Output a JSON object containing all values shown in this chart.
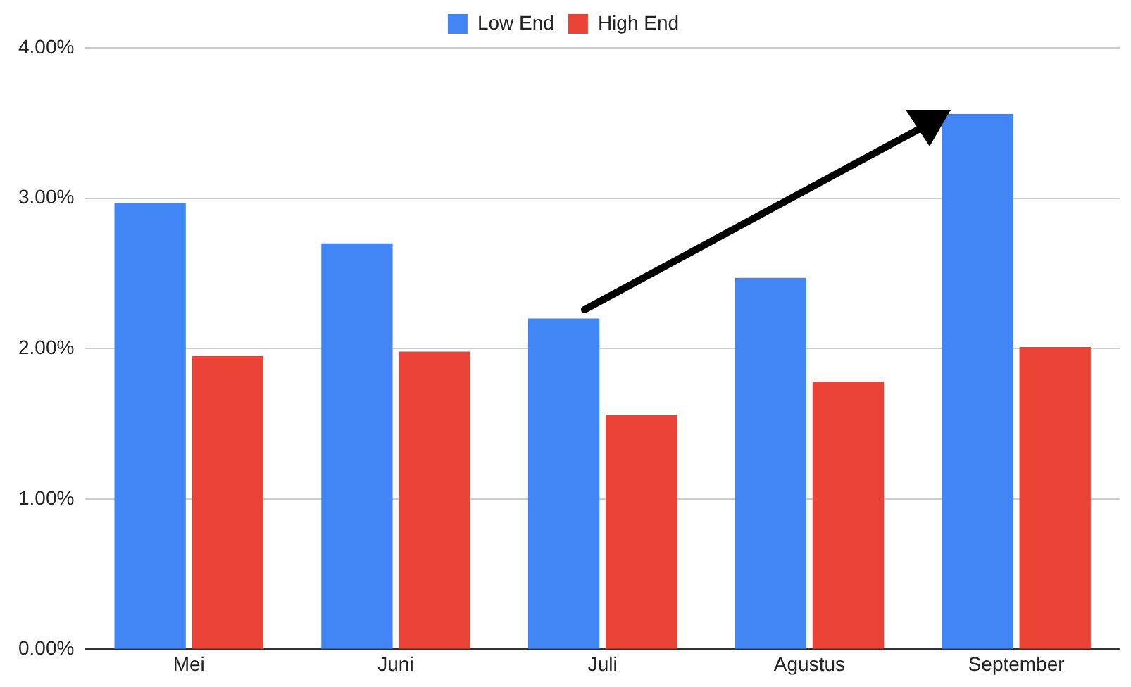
{
  "chart_data": {
    "type": "bar",
    "categories": [
      "Mei",
      "Juni",
      "Juli",
      "Agustus",
      "September"
    ],
    "series": [
      {
        "name": "Low End",
        "color": "#4285f4",
        "values": [
          2.97,
          2.7,
          2.2,
          2.47,
          3.56
        ]
      },
      {
        "name": "High End",
        "color": "#ea4335",
        "values": [
          1.95,
          1.98,
          1.56,
          1.78,
          2.01
        ]
      }
    ],
    "ylim": [
      0,
      4
    ],
    "yticks": [
      {
        "value": 0,
        "label": "0.00%"
      },
      {
        "value": 1,
        "label": "1.00%"
      },
      {
        "value": 2,
        "label": "2.00%"
      },
      {
        "value": 3,
        "label": "3.00%"
      },
      {
        "value": 4,
        "label": "4.00%"
      }
    ],
    "grid": "y",
    "legend": "top"
  }
}
